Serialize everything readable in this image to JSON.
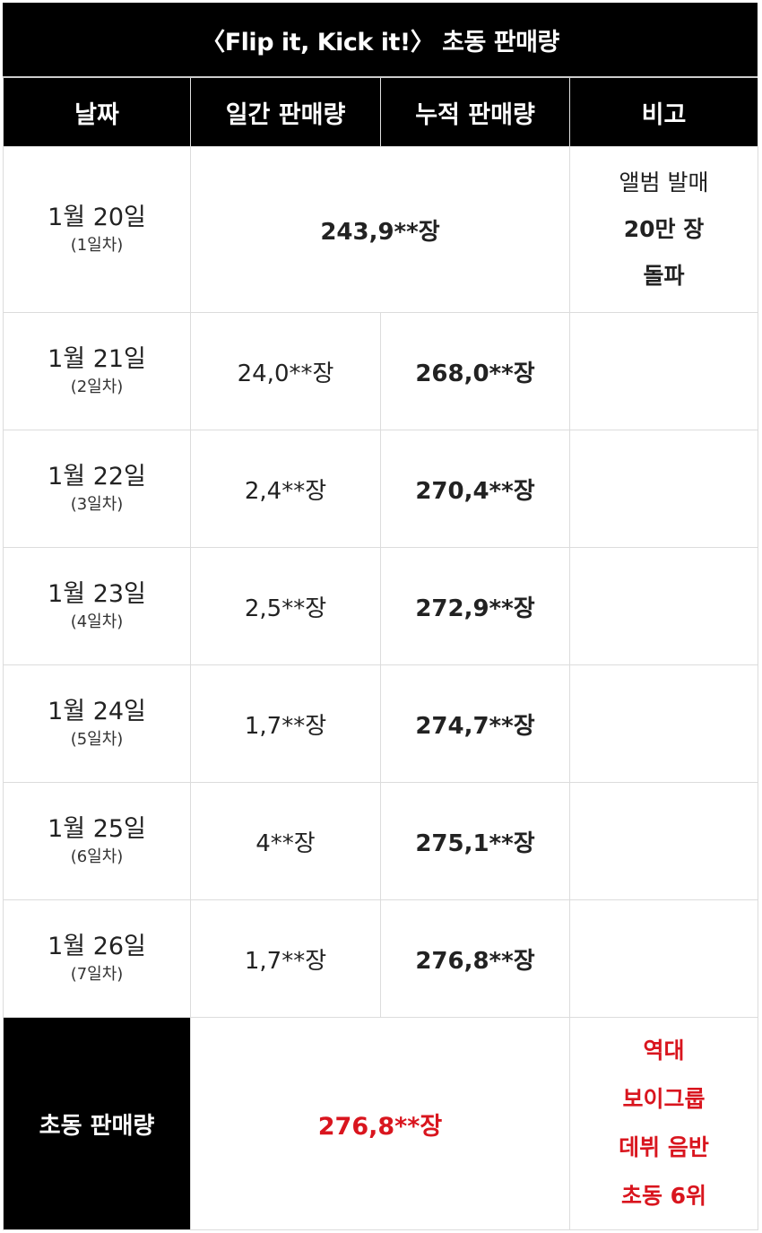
{
  "title": "〈Flip it, Kick it!〉 초동 판매량",
  "headers": [
    "날짜",
    "일간 판매량",
    "누적 판매량",
    "비고"
  ],
  "first_row": {
    "date": "1월 20일",
    "day": "(1일차)",
    "sales": "243,9**장",
    "note": [
      "앨범 발매",
      "20만 장",
      "돌파"
    ]
  },
  "rows": [
    {
      "date": "1월 21일",
      "day": "(2일차)",
      "daily": "24,0**장",
      "cumulative": "268,0**장"
    },
    {
      "date": "1월 22일",
      "day": "(3일차)",
      "daily": "2,4**장",
      "cumulative": "270,4**장"
    },
    {
      "date": "1월 23일",
      "day": "(4일차)",
      "daily": "2,5**장",
      "cumulative": "272,9**장"
    },
    {
      "date": "1월 24일",
      "day": "(5일차)",
      "daily": "1,7**장",
      "cumulative": "274,7**장"
    },
    {
      "date": "1월 25일",
      "day": "(6일차)",
      "daily": "4**장",
      "cumulative": "275,1**장"
    },
    {
      "date": "1월 26일",
      "day": "(7일차)",
      "daily": "1,7**장",
      "cumulative": "276,8**장"
    }
  ],
  "summary": {
    "label": "초동 판매량",
    "value": "276,8**장",
    "note": [
      "역대",
      "보이그룹",
      "데뷔 음반",
      "초동 6위"
    ]
  },
  "colors": {
    "header_bg": "#000000",
    "highlight": "#d9151e"
  }
}
